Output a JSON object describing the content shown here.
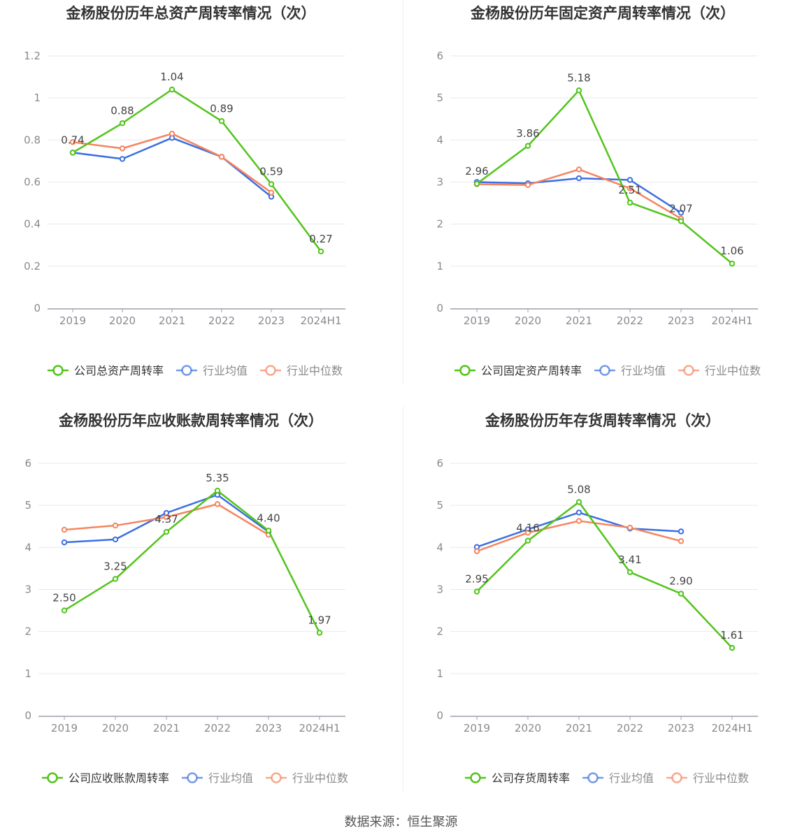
{
  "colors": {
    "company": "#52c41a",
    "avg": "#3b6fe0",
    "median": "#f4845f"
  },
  "source": "数据来源：恒生聚源",
  "chart_data": [
    {
      "type": "line",
      "title": "金杨股份历年总资产周转率情况（次）",
      "categories": [
        "2019",
        "2020",
        "2021",
        "2022",
        "2023",
        "2024H1"
      ],
      "ylim": [
        0,
        1.2
      ],
      "yticks": [
        "0",
        "0.2",
        "0.4",
        "0.6",
        "0.8",
        "1",
        "1.2"
      ],
      "legend_position": "bottom",
      "series": [
        {
          "name": "公司总资产周转率",
          "key": "company",
          "values": [
            0.74,
            0.88,
            1.04,
            0.89,
            0.59,
            0.27
          ],
          "labels": [
            "0.74",
            "0.88",
            "1.04",
            "0.89",
            "0.59",
            "0.27"
          ]
        },
        {
          "name": "行业均值",
          "key": "avg",
          "values": [
            0.74,
            0.71,
            0.81,
            0.72,
            0.53,
            null
          ]
        },
        {
          "name": "行业中位数",
          "key": "median",
          "values": [
            0.79,
            0.76,
            0.83,
            0.72,
            0.55,
            null
          ]
        }
      ]
    },
    {
      "type": "line",
      "title": "金杨股份历年固定资产周转率情况（次）",
      "categories": [
        "2019",
        "2020",
        "2021",
        "2022",
        "2023",
        "2024H1"
      ],
      "ylim": [
        0,
        6
      ],
      "yticks": [
        "0",
        "1",
        "2",
        "3",
        "4",
        "5",
        "6"
      ],
      "legend_position": "bottom",
      "series": [
        {
          "name": "公司固定资产周转率",
          "key": "company",
          "values": [
            2.96,
            3.86,
            5.18,
            2.51,
            2.07,
            1.06
          ],
          "labels": [
            "2.96",
            "3.86",
            "5.18",
            "2.51",
            "2.07",
            "1.06"
          ]
        },
        {
          "name": "行业均值",
          "key": "avg",
          "values": [
            3.0,
            2.97,
            3.09,
            3.05,
            2.27,
            null
          ]
        },
        {
          "name": "行业中位数",
          "key": "median",
          "values": [
            2.95,
            2.93,
            3.3,
            2.85,
            2.13,
            null
          ]
        }
      ]
    },
    {
      "type": "line",
      "title": "金杨股份历年应收账款周转率情况（次）",
      "categories": [
        "2019",
        "2020",
        "2021",
        "2022",
        "2023",
        "2024H1"
      ],
      "ylim": [
        0,
        6
      ],
      "yticks": [
        "0",
        "1",
        "2",
        "3",
        "4",
        "5",
        "6"
      ],
      "legend_position": "bottom",
      "series": [
        {
          "name": "公司应收账款周转率",
          "key": "company",
          "values": [
            2.5,
            3.25,
            4.37,
            5.35,
            4.4,
            1.97
          ],
          "labels": [
            "2.50",
            "3.25",
            "4.37",
            "5.35",
            "4.40",
            "1.97"
          ]
        },
        {
          "name": "行业均值",
          "key": "avg",
          "values": [
            4.12,
            4.19,
            4.82,
            5.25,
            4.37,
            null
          ]
        },
        {
          "name": "行业中位数",
          "key": "median",
          "values": [
            4.42,
            4.52,
            4.72,
            5.03,
            4.3,
            null
          ]
        }
      ]
    },
    {
      "type": "line",
      "title": "金杨股份历年存货周转率情况（次）",
      "categories": [
        "2019",
        "2020",
        "2021",
        "2022",
        "2023",
        "2024H1"
      ],
      "ylim": [
        0,
        6
      ],
      "yticks": [
        "0",
        "1",
        "2",
        "3",
        "4",
        "5",
        "6"
      ],
      "legend_position": "bottom",
      "series": [
        {
          "name": "公司存货周转率",
          "key": "company",
          "values": [
            2.95,
            4.16,
            5.08,
            3.41,
            2.9,
            1.61
          ],
          "labels": [
            "2.95",
            "4.16",
            "5.08",
            "3.41",
            "2.90",
            "1.61"
          ]
        },
        {
          "name": "行业均值",
          "key": "avg",
          "values": [
            4.01,
            4.43,
            4.83,
            4.45,
            4.38,
            null
          ]
        },
        {
          "name": "行业中位数",
          "key": "median",
          "values": [
            3.91,
            4.35,
            4.63,
            4.47,
            4.15,
            null
          ]
        }
      ]
    }
  ]
}
